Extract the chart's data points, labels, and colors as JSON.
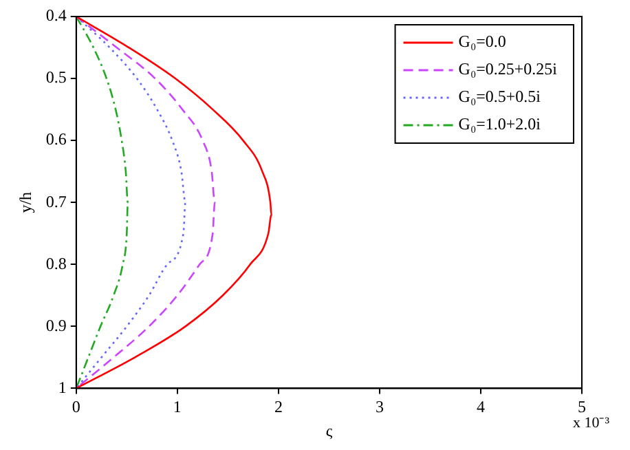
{
  "chart_data": {
    "type": "line",
    "xlabel": "ς",
    "ylabel": "y/h",
    "annotations": [
      "x 10⁻³"
    ],
    "xlim": [
      0,
      5
    ],
    "xticks": [
      0,
      1,
      2,
      3,
      4,
      5
    ],
    "ylim": [
      1,
      0.4
    ],
    "yticks": [
      0.4,
      0.5,
      0.6,
      0.7,
      0.8,
      0.9,
      1
    ],
    "grid": false,
    "legend": "top right",
    "marker": "none",
    "series": [
      {
        "name": "G₀=0.0",
        "color": "#ff0000",
        "line_style": "solid",
        "x": [
          0,
          0.52,
          0.98,
          1.35,
          1.65,
          1.84,
          1.92,
          1.93,
          1.9,
          1.72,
          1.45,
          1.08,
          0.58,
          0
        ],
        "values": [
          0.4,
          0.45,
          0.5,
          0.55,
          0.6,
          0.65,
          0.7,
          0.72,
          0.75,
          0.8,
          0.85,
          0.9,
          0.95,
          1
        ]
      },
      {
        "name": "G₀=0.25+0.25i",
        "color": "#cc44ff",
        "line_style": "dashed",
        "x": [
          0,
          0.4,
          0.78,
          1.05,
          1.25,
          1.34,
          1.37,
          1.35,
          1.22,
          1,
          0.72,
          0.37,
          0
        ],
        "values": [
          0.4,
          0.45,
          0.5,
          0.55,
          0.6,
          0.65,
          0.7,
          0.75,
          0.8,
          0.85,
          0.9,
          0.95,
          1
        ]
      },
      {
        "name": "G₀=0.5+0.5i",
        "color": "#6666ff",
        "line_style": "dotted",
        "x": [
          0,
          0.33,
          0.6,
          0.8,
          0.95,
          1.04,
          1.08,
          1.06,
          0.9,
          0.72,
          0.5,
          0.25,
          0
        ],
        "values": [
          0.4,
          0.45,
          0.5,
          0.55,
          0.6,
          0.65,
          0.7,
          0.75,
          0.8,
          0.85,
          0.9,
          0.95,
          1
        ]
      },
      {
        "name": "G₀=1.0+2.0i",
        "color": "#22aa22",
        "line_style": "dashdot",
        "x": [
          0,
          0.17,
          0.3,
          0.39,
          0.45,
          0.49,
          0.51,
          0.5,
          0.46,
          0.37,
          0.24,
          0.12,
          0
        ],
        "values": [
          0.4,
          0.45,
          0.5,
          0.55,
          0.6,
          0.65,
          0.7,
          0.75,
          0.8,
          0.85,
          0.9,
          0.95,
          1
        ]
      }
    ]
  }
}
